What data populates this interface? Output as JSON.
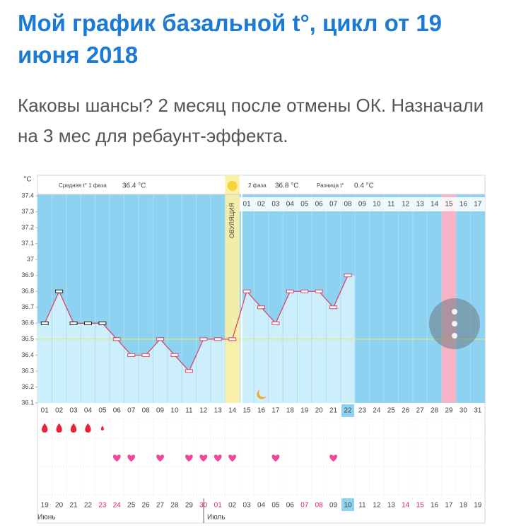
{
  "chart_data": {
    "type": "line",
    "title": "Мой график базальной t°, цикл от 19 июня 2018",
    "subtitle": "Каковы шансы? 2 месяц после отмены ОК. Назначали на 3 мес для ребаунт-эффекта.",
    "y_unit": "°C",
    "ylim": [
      36.1,
      37.4
    ],
    "yticks": [
      36.1,
      36.2,
      36.3,
      36.4,
      36.5,
      36.6,
      36.7,
      36.8,
      36.9,
      37,
      37.1,
      37.2,
      37.3,
      37.4
    ],
    "categories": [
      "01",
      "02",
      "03",
      "04",
      "05",
      "06",
      "07",
      "08",
      "09",
      "10",
      "11",
      "12",
      "13",
      "14",
      "15",
      "16",
      "17",
      "18",
      "19",
      "20",
      "21",
      "22",
      "23",
      "24",
      "25",
      "26",
      "27",
      "28",
      "29",
      "30",
      "31"
    ],
    "dates": [
      "19",
      "20",
      "21",
      "22",
      "23",
      "24",
      "25",
      "26",
      "27",
      "28",
      "29",
      "30",
      "01",
      "02",
      "03",
      "04",
      "05",
      "06",
      "07",
      "08",
      "09",
      "10",
      "11",
      "12",
      "13",
      "14",
      "15",
      "16",
      "17",
      "18",
      "19"
    ],
    "months": [
      {
        "label": "Июнь",
        "start": "01"
      },
      {
        "label": "Июль",
        "start": "13"
      }
    ],
    "weekend_days": [
      "05",
      "06",
      "12",
      "13",
      "19",
      "20",
      "26",
      "27"
    ],
    "today": "22",
    "ovulation_day": "14",
    "ovulation_label": "ОВУЛЯЦИЯ",
    "marked_day": "29",
    "phase2_days": [
      "01",
      "02",
      "03",
      "04",
      "05",
      "06",
      "07",
      "08",
      "09",
      "10",
      "11",
      "12",
      "13",
      "14",
      "15",
      "16",
      "17"
    ],
    "series": [
      {
        "name": "t°",
        "color": "#d9466a",
        "values": [
          36.6,
          36.8,
          36.6,
          36.6,
          36.6,
          36.5,
          36.4,
          36.4,
          36.5,
          36.4,
          36.3,
          36.5,
          36.5,
          36.5,
          36.8,
          36.7,
          36.6,
          36.8,
          36.8,
          36.8,
          36.7,
          36.9,
          null,
          null,
          null,
          null,
          null,
          null,
          null,
          null,
          null
        ]
      }
    ],
    "coverline": 36.5,
    "phase1_label": "Средняя t° 1 фаза",
    "phase1_avg": {
      "value": 36.4,
      "label": "36.4 °C"
    },
    "phase2_label": "2 фаза",
    "phase2_avg": {
      "value": 36.8,
      "label": "36.8 °C"
    },
    "diff_label": "Разница t°",
    "diff": {
      "value": 0.4,
      "label": "0.4 °C"
    },
    "bleeding": [
      1,
      1,
      1,
      1,
      0.5,
      null,
      null,
      null,
      null,
      null,
      null,
      null,
      null,
      null,
      null,
      null,
      null,
      null,
      null,
      null,
      null,
      null,
      null,
      null,
      null,
      null,
      null,
      null,
      null,
      null,
      null
    ],
    "intercourse": [
      "06",
      "07",
      "09",
      "11",
      "12",
      "13",
      "14",
      "17",
      "21"
    ]
  }
}
